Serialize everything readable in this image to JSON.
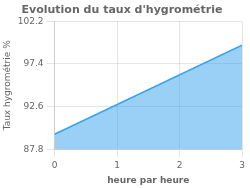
{
  "chart_data": {
    "type": "area",
    "title": "Evolution du taux d'hygrométrie",
    "xlabel": "heure par heure",
    "ylabel": "Taux hygrométrie %",
    "x": [
      0,
      3
    ],
    "values": [
      89.5,
      99.5
    ],
    "xlim": [
      0,
      3
    ],
    "xticks": [
      0,
      1,
      2,
      3
    ],
    "ylim": [
      87.8,
      102.2
    ],
    "yticks": [
      87.8,
      92.6,
      97.4,
      102.2
    ],
    "grid": true
  }
}
